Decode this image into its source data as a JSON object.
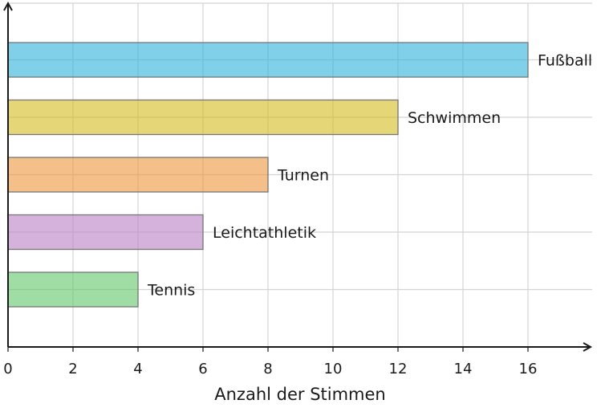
{
  "chart_data": {
    "type": "bar",
    "orientation": "horizontal",
    "categories": [
      "Fußball",
      "Schwimmen",
      "Turnen",
      "Leichtathletik",
      "Tennis"
    ],
    "values": [
      16,
      12,
      8,
      6,
      4
    ],
    "colors": [
      "#2ab0d8",
      "#d4bb1c",
      "#ec9539",
      "#b97ec4",
      "#5fc669"
    ],
    "title": "",
    "xlabel": "Anzahl der Stimmen",
    "ylabel": "",
    "xlim": [
      0,
      18
    ],
    "xticks": [
      0,
      2,
      4,
      6,
      8,
      10,
      12,
      14,
      16
    ],
    "grid": true,
    "legend": "none",
    "labels_at_bar_end": true
  }
}
